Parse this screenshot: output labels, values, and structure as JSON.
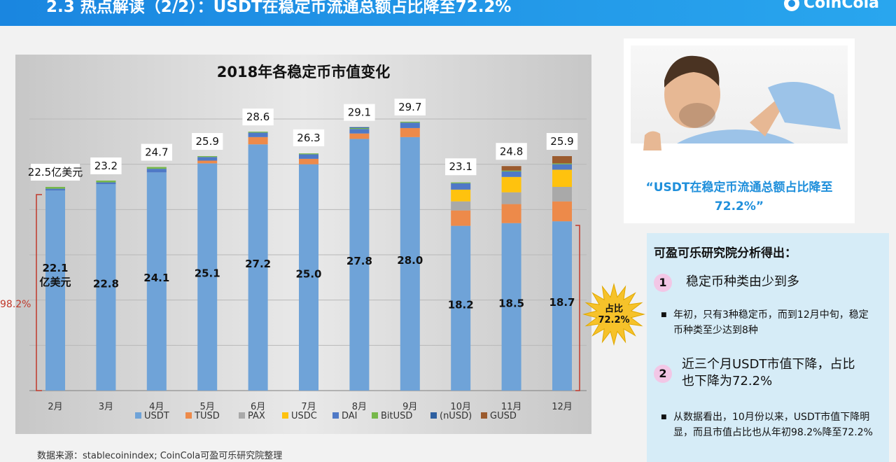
{
  "header": {
    "title": "2.3 热点解读（2/2）：USDT在稳定币流通总额占比降至72.2%",
    "logo": "CoinCola"
  },
  "chart_data": {
    "type": "bar",
    "stacked": true,
    "title": "2018年各稳定币市值变化",
    "categories": [
      "2月",
      "3月",
      "4月",
      "5月",
      "6月",
      "7月",
      "8月",
      "9月",
      "10月",
      "11月",
      "12月"
    ],
    "totals": [
      22.5,
      23.2,
      24.7,
      25.9,
      28.6,
      26.3,
      29.1,
      29.7,
      23.1,
      24.8,
      25.9
    ],
    "total_labels": [
      "22.5亿美元",
      "23.2",
      "24.7",
      "25.9",
      "28.6",
      "26.3",
      "29.1",
      "29.7",
      "23.1",
      "24.8",
      "25.9"
    ],
    "usdt_labels": [
      "22.1 亿美元",
      "22.8",
      "24.1",
      "25.1",
      "27.2",
      "25.0",
      "27.8",
      "28.0",
      "18.2",
      "18.5",
      "18.7"
    ],
    "series": [
      {
        "name": "USDT",
        "color": "#6fa3d8",
        "values": [
          22.1,
          22.8,
          24.1,
          25.1,
          27.2,
          25.0,
          27.8,
          28.0,
          18.2,
          18.5,
          18.7
        ]
      },
      {
        "name": "TUSD",
        "color": "#ed8a4a",
        "values": [
          0,
          0,
          0,
          0.3,
          0.8,
          0.6,
          0.6,
          1.0,
          1.7,
          2.1,
          2.2
        ]
      },
      {
        "name": "PAX",
        "color": "#a9a9a9",
        "values": [
          0,
          0,
          0,
          0,
          0,
          0,
          0,
          0,
          1.0,
          1.3,
          1.6
        ]
      },
      {
        "name": "USDC",
        "color": "#ffc20e",
        "values": [
          0,
          0,
          0,
          0,
          0,
          0,
          0,
          0,
          1.3,
          1.7,
          1.9
        ]
      },
      {
        "name": "DAI",
        "color": "#4f79c6",
        "values": [
          0.2,
          0.2,
          0.4,
          0.4,
          0.5,
          0.5,
          0.5,
          0.6,
          0.7,
          0.6,
          0.6
        ]
      },
      {
        "name": "BitUSD",
        "color": "#77b84b",
        "values": [
          0.2,
          0.2,
          0.2,
          0.1,
          0.1,
          0.1,
          0.1,
          0.1,
          0.1,
          0.1,
          0.1
        ]
      },
      {
        "name": "(nUSD)",
        "color": "#2d5fa0",
        "values": [
          0,
          0,
          0,
          0,
          0,
          0,
          0.1,
          0,
          0,
          0,
          0
        ]
      },
      {
        "name": "GUSD",
        "color": "#9b5b2e",
        "values": [
          0,
          0,
          0,
          0,
          0,
          0,
          0,
          0,
          0,
          0.5,
          0.8
        ]
      }
    ],
    "ylim": [
      0,
      30
    ],
    "grid": true,
    "legend": "bottom",
    "annotations": {
      "start_share": "98.2%",
      "end_share": "占比 72.2%"
    }
  },
  "source": "数据来源：stablecoinindex; CoinCola可盈可乐研究院整理",
  "photo_card": {
    "quote": "“USDT在稳定币流通总额占比降至72.2%”"
  },
  "analysis": {
    "title": "可盈可乐研究院分析得出：",
    "points": [
      {
        "num": "1",
        "heading": "稳定币种类由少到多",
        "detail": "年初，只有3种稳定币，而到12月中旬，稳定币种类至少达到8种"
      },
      {
        "num": "2",
        "heading": "近三个月USDT市值下降，占比也下降为72.2%",
        "detail": "从数据看出，10月份以来，USDT市值下降明显，而且市值占比也从年初98.2%降至72.2%"
      }
    ]
  }
}
